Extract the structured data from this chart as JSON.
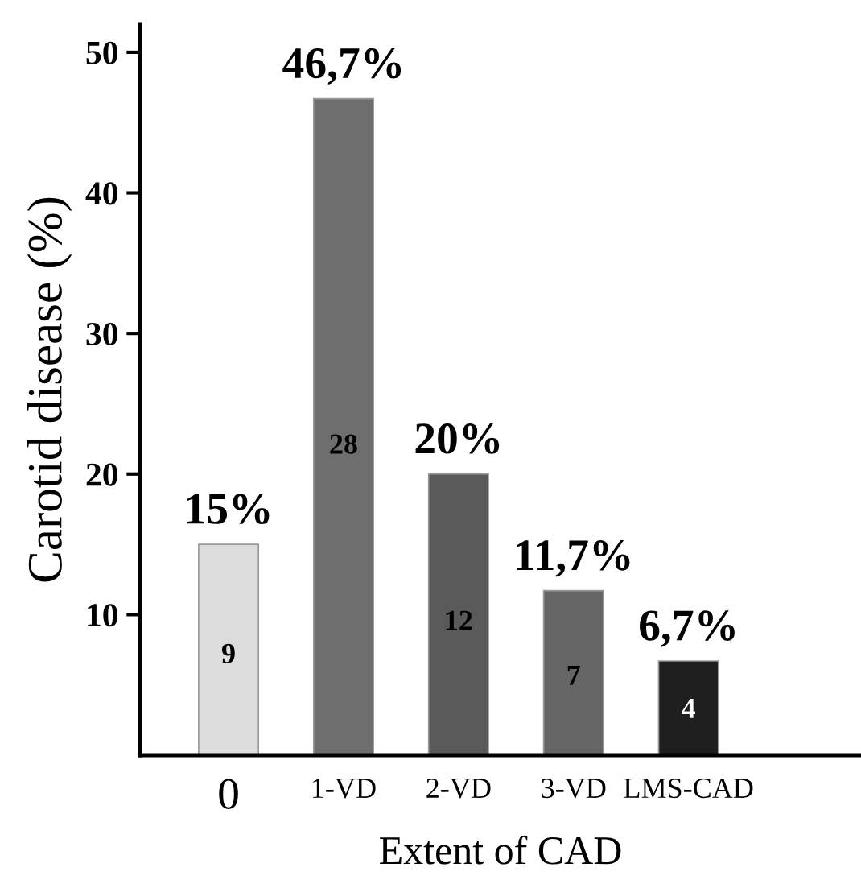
{
  "chart_data": {
    "type": "bar",
    "xlabel": "Extent of CAD",
    "ylabel": "Carotid disease (%)",
    "categories": [
      "0",
      "1-VD",
      "2-VD",
      "3-VD",
      "LMS-CAD"
    ],
    "values": [
      15,
      46.7,
      20,
      11.7,
      6.7
    ],
    "colors": [
      "#dcdcdc",
      "#6e6e6e",
      "#5a5a5a",
      "#666666",
      "#1e1e1e"
    ],
    "value_labels": [
      "15%",
      "46,7%",
      "20%",
      "11,7%",
      "6,7%"
    ],
    "annotations": [
      "9",
      "28",
      "12",
      "7",
      "4"
    ],
    "ylim": [
      0,
      52
    ],
    "yticks": [
      10,
      20,
      30,
      40,
      50
    ],
    "grid": false
  }
}
